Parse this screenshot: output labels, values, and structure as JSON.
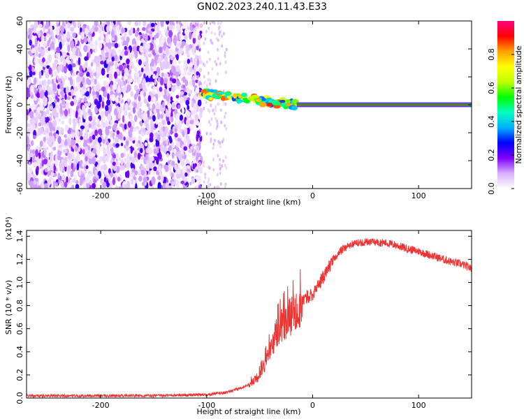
{
  "figure": {
    "title": "GN02.2023.240.11.43.E33"
  },
  "chart_data": [
    {
      "type": "heatmap",
      "title": "",
      "xlabel": "Height of straight line (km)",
      "ylabel": "Frequency (Hz)",
      "xlim": [
        -270,
        150
      ],
      "ylim": [
        -60,
        60
      ],
      "x_ticks": [
        -200,
        -100,
        0,
        100
      ],
      "x_tick_labels": [
        "-200",
        "-100",
        "0",
        "100"
      ],
      "y_ticks": [
        -60,
        -40,
        -20,
        0,
        20,
        40,
        60
      ],
      "y_tick_labels": [
        "-60",
        "-40",
        "-20",
        "0",
        "20",
        "40",
        "60"
      ],
      "grid": false,
      "description_of_content": [
        {
          "x_range": [
            -270,
            -105
          ],
          "frequency_range": [
            -60,
            60
          ],
          "normalized_amplitude": [
            0.1,
            0.25
          ]
        },
        {
          "x_range": [
            -105,
            -15
          ],
          "frequency_center": [
            8,
            0
          ],
          "normalized_amplitude": [
            0.3,
            0.9
          ]
        },
        {
          "x_range": [
            -15,
            150
          ],
          "frequency_center": 0,
          "normalized_amplitude": 0.9
        }
      ],
      "colorbar": {
        "label": "Normalized spectral amplitude",
        "range": [
          0.0,
          1.0
        ],
        "ticks": [
          0.0,
          0.2,
          0.4,
          0.6,
          0.8
        ],
        "tick_labels": [
          "0.0",
          "0.2",
          "0.4",
          "0.6",
          "0.8"
        ],
        "colormap": [
          "#ffffff",
          "#d8b0ff",
          "#8000ff",
          "#0000ff",
          "#00b0ff",
          "#00ffc0",
          "#00ff00",
          "#c0ff00",
          "#ffff00",
          "#ffa000",
          "#ff0000",
          "#ff0080"
        ]
      }
    },
    {
      "type": "line",
      "title": "",
      "xlabel": "Height of straight line (km)",
      "ylabel": "SNR (10 * v/v)",
      "y_scale_note": "(x10⁴)",
      "xlim": [
        -270,
        150
      ],
      "ylim": [
        0.0,
        1.45
      ],
      "x_ticks": [
        -200,
        -100,
        0,
        100
      ],
      "x_tick_labels": [
        "-200",
        "-100",
        "0",
        "100"
      ],
      "y_ticks": [
        0.0,
        0.2,
        0.4,
        0.6,
        0.8,
        1.0,
        1.2,
        1.4
      ],
      "y_tick_labels": [
        "0.0",
        "0.2",
        "0.4",
        "0.6",
        "0.8",
        "1.0",
        "1.2",
        "1.4"
      ],
      "grid": false,
      "series": [
        {
          "color": "#ee3333",
          "x": [
            -270,
            -200,
            -150,
            -100,
            -80,
            -70,
            -60,
            -55,
            -50,
            -45,
            -40,
            -35,
            -30,
            -25,
            -20,
            -15,
            -10,
            -5,
            0,
            5,
            10,
            15,
            20,
            25,
            30,
            40,
            50,
            60,
            70,
            80,
            90,
            100,
            110,
            120,
            130,
            140,
            150
          ],
          "values": [
            0.02,
            0.02,
            0.02,
            0.03,
            0.05,
            0.08,
            0.12,
            0.15,
            0.2,
            0.3,
            0.42,
            0.55,
            0.62,
            0.68,
            0.72,
            0.75,
            0.82,
            0.88,
            0.9,
            0.97,
            1.05,
            1.13,
            1.2,
            1.26,
            1.3,
            1.34,
            1.35,
            1.35,
            1.34,
            1.32,
            1.29,
            1.27,
            1.24,
            1.21,
            1.18,
            1.16,
            1.12
          ]
        }
      ]
    }
  ]
}
